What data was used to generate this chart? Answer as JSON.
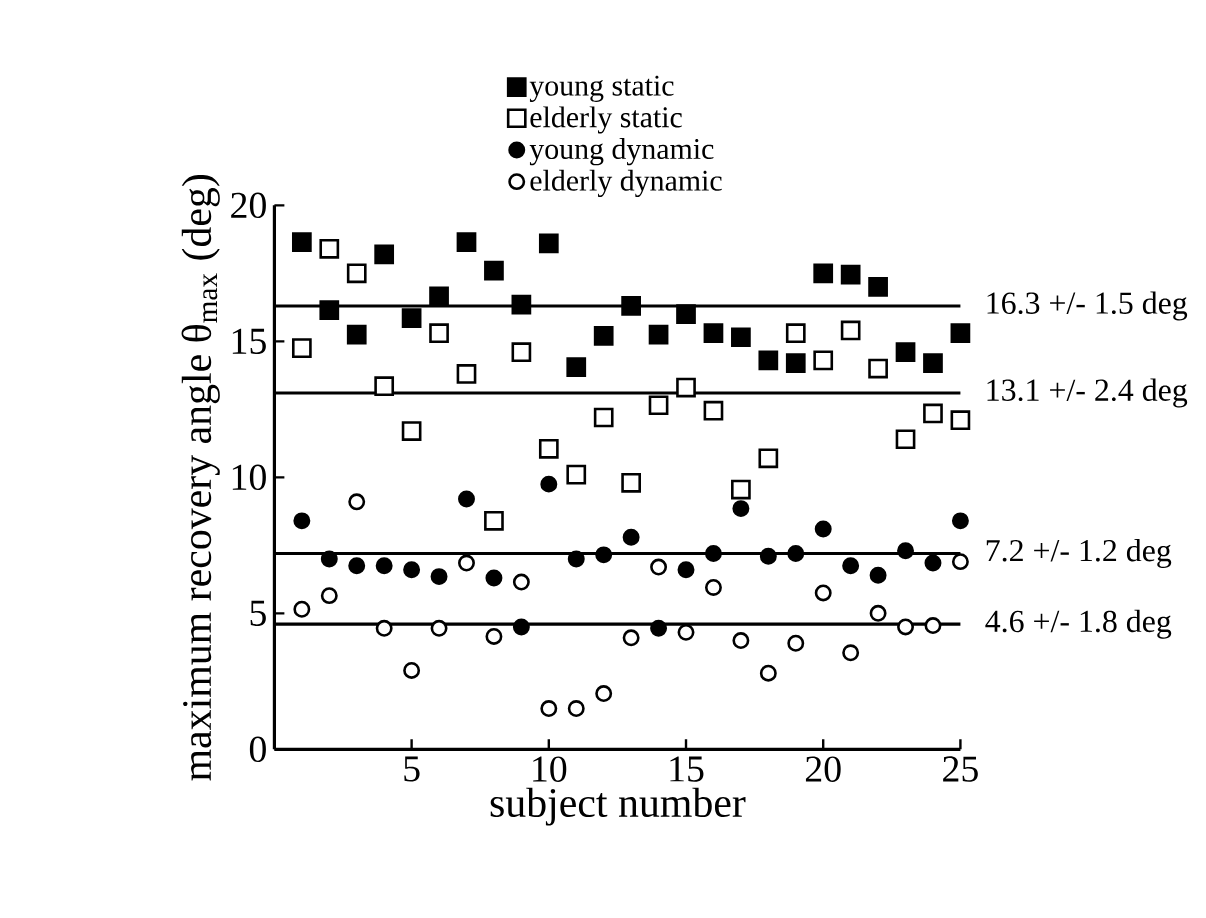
{
  "chart_data": {
    "type": "scatter",
    "xlabel": "subject number",
    "ylabel": "maximum recovery angle θ$_{max}$ (deg)",
    "x": [
      1,
      2,
      3,
      4,
      5,
      6,
      7,
      8,
      9,
      10,
      11,
      12,
      13,
      14,
      15,
      16,
      17,
      18,
      19,
      20,
      21,
      22,
      23,
      24,
      25
    ],
    "series": [
      {
        "name": "young static",
        "color": "#000000",
        "marker": "square",
        "values": [
          18.65,
          16.15,
          15.25,
          18.2,
          15.85,
          16.65,
          18.65,
          17.6,
          16.35,
          18.6,
          14.05,
          15.2,
          16.3,
          15.25,
          16.0,
          15.3,
          15.15,
          14.3,
          14.2,
          17.5,
          17.45,
          17.0,
          14.6,
          14.2,
          15.3
        ]
      },
      {
        "name": "elderly static",
        "color": "#ffffff",
        "marker": "square",
        "values": [
          14.75,
          18.4,
          17.5,
          13.35,
          11.7,
          15.3,
          13.8,
          8.4,
          14.6,
          11.05,
          10.1,
          12.2,
          9.8,
          12.65,
          13.3,
          12.45,
          9.55,
          10.7,
          15.3,
          14.3,
          15.4,
          14.0,
          11.4,
          12.35,
          12.1
        ]
      },
      {
        "name": "young dynamic",
        "color": "#000000",
        "marker": "circle",
        "values": [
          8.4,
          7.0,
          6.75,
          6.75,
          6.6,
          6.35,
          9.2,
          6.3,
          4.5,
          9.75,
          7.0,
          7.15,
          7.8,
          4.45,
          6.6,
          7.2,
          8.85,
          7.1,
          7.2,
          8.1,
          6.75,
          6.4,
          7.3,
          6.85,
          8.4
        ]
      },
      {
        "name": "elderly dynamic",
        "color": "#ffffff",
        "marker": "circle",
        "values": [
          5.15,
          5.65,
          9.1,
          4.45,
          2.9,
          4.45,
          6.85,
          4.15,
          6.15,
          1.5,
          1.5,
          2.05,
          4.1,
          6.7,
          4.3,
          5.95,
          4.0,
          2.8,
          3.9,
          5.75,
          3.55,
          5.0,
          4.5,
          4.55,
          6.9
        ]
      }
    ],
    "xlim": [
      0,
      25
    ],
    "ylim": [
      0,
      20
    ],
    "xticks": [
      5,
      10,
      15,
      20,
      25
    ],
    "yticks": [
      0,
      5,
      10,
      15,
      20
    ],
    "ref_lines": [
      {
        "axis": "y",
        "value": 16.3,
        "label": "16.3 +/- 1.5 deg",
        "color": "#000000"
      },
      {
        "axis": "y",
        "value": 13.1,
        "label": "13.1 +/- 2.4 deg",
        "color": "#000000"
      },
      {
        "axis": "y",
        "value": 7.2,
        "label": "7.2 +/- 1.2 deg",
        "color": "#000000"
      },
      {
        "axis": "y",
        "value": 4.6,
        "label": "4.6 +/- 1.8 deg",
        "color": "#000000"
      }
    ],
    "grid": false,
    "legend": "top"
  }
}
